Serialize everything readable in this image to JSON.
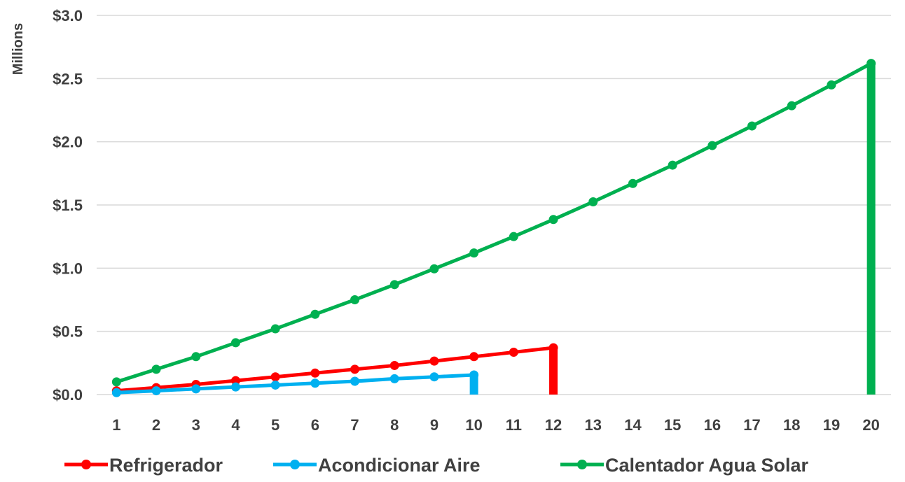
{
  "chart_data": {
    "type": "line",
    "title": "",
    "xlabel": "",
    "ylabel": "Millions",
    "x": [
      1,
      2,
      3,
      4,
      5,
      6,
      7,
      8,
      9,
      10,
      11,
      12,
      13,
      14,
      15,
      16,
      17,
      18,
      19,
      20
    ],
    "ylim": [
      0,
      3.0
    ],
    "y_ticks": [
      {
        "value": 0.0,
        "label": "$0.0"
      },
      {
        "value": 0.5,
        "label": "$0.5"
      },
      {
        "value": 1.0,
        "label": "$1.0"
      },
      {
        "value": 1.5,
        "label": "$1.5"
      },
      {
        "value": 2.0,
        "label": "$2.0"
      },
      {
        "value": 2.5,
        "label": "$2.5"
      },
      {
        "value": 3.0,
        "label": "$3.0"
      }
    ],
    "grid": true,
    "legend_position": "bottom",
    "series": [
      {
        "name": "Refrigerador",
        "color": "#ff0000",
        "x": [
          1,
          2,
          3,
          4,
          5,
          6,
          7,
          8,
          9,
          10,
          11,
          12
        ],
        "values": [
          0.03,
          0.055,
          0.08,
          0.11,
          0.14,
          0.17,
          0.2,
          0.23,
          0.265,
          0.3,
          0.335,
          0.37
        ],
        "drop_to_zero": true
      },
      {
        "name": "Acondicionar Aire",
        "color": "#00b0f0",
        "x": [
          1,
          2,
          3,
          4,
          5,
          6,
          7,
          8,
          9,
          10
        ],
        "values": [
          0.015,
          0.03,
          0.045,
          0.06,
          0.075,
          0.09,
          0.105,
          0.125,
          0.14,
          0.155
        ],
        "drop_to_zero": true
      },
      {
        "name": "Calentador Agua Solar",
        "color": "#00b050",
        "x": [
          1,
          2,
          3,
          4,
          5,
          6,
          7,
          8,
          9,
          10,
          11,
          12,
          13,
          14,
          15,
          16,
          17,
          18,
          19,
          20
        ],
        "values": [
          0.1,
          0.2,
          0.3,
          0.41,
          0.52,
          0.635,
          0.75,
          0.87,
          0.995,
          1.12,
          1.25,
          1.385,
          1.525,
          1.67,
          1.815,
          1.97,
          2.125,
          2.285,
          2.45,
          2.62
        ],
        "drop_to_zero": true
      }
    ]
  }
}
